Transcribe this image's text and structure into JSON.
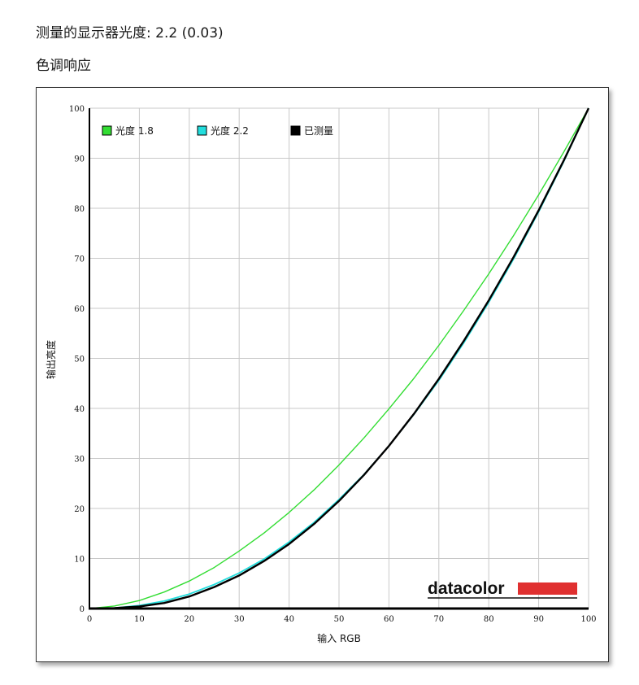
{
  "header": {
    "measured_gamma": "测量的显示器光度: 2.2 (0.03)",
    "section_title": "色调响应"
  },
  "logo": {
    "text": "datacolor"
  },
  "colors": {
    "gamma18": "#33dd33",
    "gamma22": "#22dddd",
    "measured": "#000000",
    "logo_bar": "#e03030",
    "grid": "#c8c8c8"
  },
  "chart_data": {
    "type": "line",
    "xlabel": "输入 RGB",
    "ylabel": "输出亮度",
    "xlim": [
      0,
      100
    ],
    "ylim": [
      0,
      100
    ],
    "xticks": [
      0,
      10,
      20,
      30,
      40,
      50,
      60,
      70,
      80,
      90,
      100
    ],
    "yticks": [
      0,
      10,
      20,
      30,
      40,
      50,
      60,
      70,
      80,
      90,
      100
    ],
    "grid": true,
    "legend_position": "top-left",
    "series": [
      {
        "name": "光度 1.8",
        "legend_label": "光度 1.8",
        "color": "#33dd33",
        "x": [
          0,
          5,
          10,
          15,
          20,
          25,
          30,
          35,
          40,
          45,
          50,
          55,
          60,
          65,
          70,
          75,
          80,
          85,
          90,
          95,
          100
        ],
        "y": [
          0,
          0.5,
          1.6,
          3.3,
          5.5,
          8.2,
          11.5,
          15.1,
          19.2,
          23.7,
          28.7,
          34.1,
          39.9,
          46.0,
          52.6,
          59.6,
          66.9,
          74.6,
          82.7,
          91.2,
          100
        ]
      },
      {
        "name": "光度 2.2",
        "legend_label": "光度 2.2",
        "color": "#22dddd",
        "x": [
          0,
          5,
          10,
          15,
          20,
          25,
          30,
          35,
          40,
          45,
          50,
          55,
          60,
          65,
          70,
          75,
          80,
          85,
          90,
          95,
          100
        ],
        "y": [
          0,
          0.1,
          0.6,
          1.5,
          2.9,
          4.8,
          7.1,
          9.9,
          13.3,
          17.2,
          21.8,
          26.8,
          32.5,
          38.8,
          45.6,
          53.1,
          61.2,
          69.9,
          79.3,
          89.3,
          100
        ]
      },
      {
        "name": "已测量",
        "legend_label": "已测量",
        "color": "#000000",
        "x": [
          0,
          5,
          10,
          15,
          20,
          25,
          30,
          35,
          40,
          45,
          50,
          55,
          60,
          65,
          70,
          75,
          80,
          85,
          90,
          95,
          100
        ],
        "y": [
          0,
          0.1,
          0.4,
          1.1,
          2.4,
          4.3,
          6.6,
          9.5,
          12.9,
          16.9,
          21.5,
          26.7,
          32.5,
          38.9,
          45.9,
          53.5,
          61.6,
          70.3,
          79.6,
          89.5,
          100
        ]
      }
    ]
  }
}
